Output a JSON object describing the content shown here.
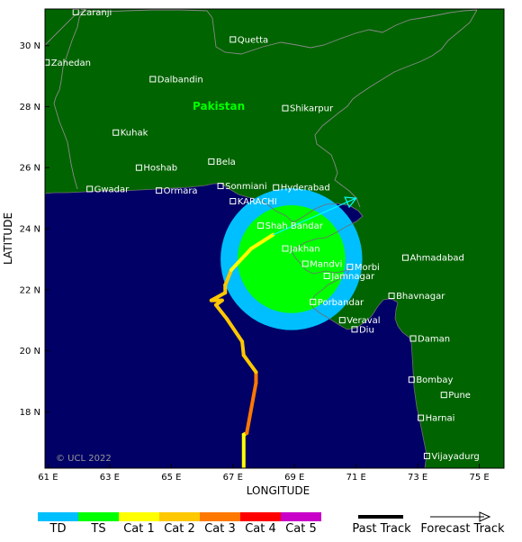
{
  "axes": {
    "x_title": "LONGITUDE",
    "y_title": "LATITUDE",
    "x_ticks": [
      "61 E",
      "63 E",
      "65 E",
      "67 E",
      "69 E",
      "71 E",
      "73 E",
      "75 E"
    ],
    "y_ticks": [
      "30 N",
      "28 N",
      "26 N",
      "24 N",
      "22 N",
      "20 N",
      "18 N"
    ],
    "lon_range": [
      60.9,
      75.8
    ],
    "lat_range": [
      16.15,
      31.2
    ]
  },
  "colors": {
    "land": "#006400",
    "sea": "#000066",
    "coast": "#6f6f6f",
    "TD": "#00bfff",
    "TS": "#00ff00",
    "Cat1": "#ffff00",
    "Cat2": "#ffc800",
    "Cat3": "#ff7800",
    "Cat4": "#ff0000",
    "Cat5": "#c800c8",
    "city_label": "#ffffff",
    "country_label": "#00ff00",
    "forecast_line": "#00ffff"
  },
  "country_label": "Pakistan",
  "copyright": "© UCL 2022",
  "cities": [
    {
      "name": "Zaranji",
      "lon": 61.9,
      "lat": 31.1
    },
    {
      "name": "Quetta",
      "lon": 67.0,
      "lat": 30.2
    },
    {
      "name": "Zahedan",
      "lon": 60.95,
      "lat": 29.45
    },
    {
      "name": "Dalbandin",
      "lon": 64.4,
      "lat": 28.9
    },
    {
      "name": "Shikarpur",
      "lon": 68.7,
      "lat": 27.95
    },
    {
      "name": "Kuhak",
      "lon": 63.2,
      "lat": 27.15
    },
    {
      "name": "Hoshab",
      "lon": 63.95,
      "lat": 26.0
    },
    {
      "name": "Bela",
      "lon": 66.3,
      "lat": 26.2
    },
    {
      "name": "Gwadar",
      "lon": 62.35,
      "lat": 25.3
    },
    {
      "name": "Ormara",
      "lon": 64.6,
      "lat": 25.25
    },
    {
      "name": "Sonmiani",
      "lon": 66.6,
      "lat": 25.4
    },
    {
      "name": "Hyderabad",
      "lon": 68.4,
      "lat": 25.35
    },
    {
      "name": "KARACHI",
      "lon": 67.0,
      "lat": 24.9
    },
    {
      "name": "Shah Bandar",
      "lon": 67.9,
      "lat": 24.1
    },
    {
      "name": "Jakhan",
      "lon": 68.7,
      "lat": 23.35
    },
    {
      "name": "Mandvi",
      "lon": 69.35,
      "lat": 22.85
    },
    {
      "name": "Morbi",
      "lon": 70.8,
      "lat": 22.75
    },
    {
      "name": "Jamnagar",
      "lon": 70.05,
      "lat": 22.45
    },
    {
      "name": "Ahmadabad",
      "lon": 72.6,
      "lat": 23.05
    },
    {
      "name": "Bhavnagar",
      "lon": 72.15,
      "lat": 21.8
    },
    {
      "name": "Porbandar",
      "lon": 69.6,
      "lat": 21.6
    },
    {
      "name": "Veraval",
      "lon": 70.55,
      "lat": 21.0
    },
    {
      "name": "Diu",
      "lon": 70.95,
      "lat": 20.7
    },
    {
      "name": "Daman",
      "lon": 72.85,
      "lat": 20.4
    },
    {
      "name": "Bombay",
      "lon": 72.8,
      "lat": 19.05
    },
    {
      "name": "Pune",
      "lon": 73.85,
      "lat": 18.55
    },
    {
      "name": "Harnai",
      "lon": 73.1,
      "lat": 17.8
    },
    {
      "name": "Vijayadurg",
      "lon": 73.3,
      "lat": 16.55
    }
  ],
  "wind_field": {
    "center_lon": 68.9,
    "center_lat": 23.0,
    "outer_radius_deg": 2.3,
    "inner_radius_deg": 1.75
  },
  "track": {
    "points": [
      {
        "lon": 67.35,
        "lat": 16.1,
        "category": "Cat1"
      },
      {
        "lon": 67.35,
        "lat": 17.25,
        "category": "Cat1"
      },
      {
        "lon": 67.45,
        "lat": 17.3,
        "category": "Cat3"
      },
      {
        "lon": 67.75,
        "lat": 18.95,
        "category": "Cat3"
      },
      {
        "lon": 67.75,
        "lat": 19.3,
        "category": "Cat2"
      },
      {
        "lon": 67.35,
        "lat": 19.85,
        "category": "Cat2"
      },
      {
        "lon": 67.3,
        "lat": 20.3,
        "category": "Cat2"
      },
      {
        "lon": 66.8,
        "lat": 21.05,
        "category": "Cat2"
      },
      {
        "lon": 66.45,
        "lat": 21.5,
        "category": "Cat2"
      },
      {
        "lon": 66.65,
        "lat": 21.65,
        "category": "Cat2"
      },
      {
        "lon": 66.3,
        "lat": 21.65,
        "category": "Cat2"
      },
      {
        "lon": 66.75,
        "lat": 21.9,
        "category": "Cat2"
      },
      {
        "lon": 66.75,
        "lat": 22.15,
        "category": "Cat2"
      },
      {
        "lon": 66.95,
        "lat": 22.65,
        "category": "Cat1"
      },
      {
        "lon": 67.6,
        "lat": 23.35,
        "category": "Cat1"
      },
      {
        "lon": 68.3,
        "lat": 23.8,
        "category": "TS"
      }
    ],
    "forecast": [
      {
        "lon": 68.3,
        "lat": 23.8
      },
      {
        "lon": 71.0,
        "lat": 25.0
      }
    ]
  },
  "legend": {
    "categories": [
      {
        "label": "TD",
        "key": "TD"
      },
      {
        "label": "TS",
        "key": "TS"
      },
      {
        "label": "Cat 1",
        "key": "Cat1"
      },
      {
        "label": "Cat 2",
        "key": "Cat2"
      },
      {
        "label": "Cat 3",
        "key": "Cat3"
      },
      {
        "label": "Cat 4",
        "key": "Cat4"
      },
      {
        "label": "Cat 5",
        "key": "Cat5"
      }
    ],
    "past_track_label": "Past Track",
    "forecast_track_label": "Forecast Track"
  }
}
